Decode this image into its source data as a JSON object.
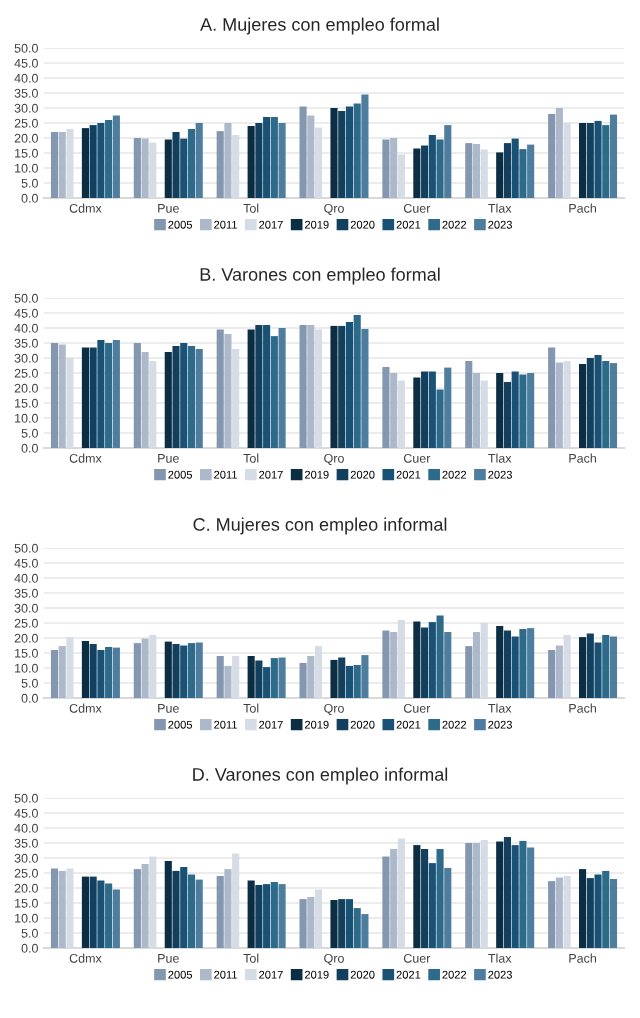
{
  "chart_data": [
    {
      "type": "bar",
      "title": "A. Mujeres con empleo formal",
      "categories": [
        "Cdmx",
        "Pue",
        "Tol",
        "Qro",
        "Cuer",
        "Tlax",
        "Pach"
      ],
      "ylim": [
        0,
        50
      ],
      "yticks": [
        {
          "value": 0,
          "label": "0.0"
        },
        {
          "value": 5,
          "label": "5.0"
        },
        {
          "value": 10,
          "label": "10.0"
        },
        {
          "value": 15,
          "label": "15.0"
        },
        {
          "value": 20,
          "label": "20.0"
        },
        {
          "value": 25,
          "label": "25.0"
        },
        {
          "value": 30,
          "label": "30.0"
        },
        {
          "value": 35,
          "label": "35.0"
        },
        {
          "value": 40,
          "label": "40.0"
        },
        {
          "value": 45,
          "label": "45.0"
        },
        {
          "value": 50,
          "label": "50.0"
        }
      ],
      "grid": "y",
      "legend": "bottom",
      "series": [
        {
          "name": "2005",
          "color": "#8497b0",
          "values": [
            22,
            20,
            22.3,
            30.5,
            19.5,
            18.3,
            28
          ]
        },
        {
          "name": "2011",
          "color": "#adb9ca",
          "values": [
            22,
            19.8,
            25,
            27.5,
            20,
            18,
            30
          ]
        },
        {
          "name": "2017",
          "color": "#d6dce5",
          "values": [
            23,
            18.5,
            21,
            23.5,
            14.5,
            16.2,
            25
          ]
        },
        {
          "name": "2019",
          "color": "#0b2e45",
          "values": [
            23.3,
            19.5,
            24,
            30,
            16.5,
            15.2,
            25
          ]
        },
        {
          "name": "2020",
          "color": "#12405e",
          "values": [
            24.3,
            22,
            25,
            29,
            17.5,
            18.3,
            25
          ]
        },
        {
          "name": "2021",
          "color": "#1a5276",
          "values": [
            25,
            19.8,
            27,
            30.5,
            21,
            19.8,
            25.7
          ]
        },
        {
          "name": "2022",
          "color": "#2e6b8a",
          "values": [
            26,
            23,
            27,
            31.5,
            19.5,
            16.3,
            24.3
          ]
        },
        {
          "name": "2023",
          "color": "#4e7d9e",
          "values": [
            27.5,
            25,
            25,
            34.5,
            24.3,
            17.8,
            27.8
          ]
        }
      ]
    },
    {
      "type": "bar",
      "title": "B. Varones con empleo formal",
      "categories": [
        "Cdmx",
        "Pue",
        "Tol",
        "Qro",
        "Cuer",
        "Tlax",
        "Pach"
      ],
      "ylim": [
        0,
        50
      ],
      "yticks": [
        {
          "value": 0,
          "label": "0.0"
        },
        {
          "value": 5,
          "label": "5.0"
        },
        {
          "value": 10,
          "label": "10.0"
        },
        {
          "value": 15,
          "label": "15.0"
        },
        {
          "value": 20,
          "label": "20.0"
        },
        {
          "value": 25,
          "label": "25.0"
        },
        {
          "value": 30,
          "label": "30.0"
        },
        {
          "value": 35,
          "label": "35.0"
        },
        {
          "value": 40,
          "label": "40.0"
        },
        {
          "value": 45,
          "label": "45.0"
        },
        {
          "value": 50,
          "label": "50.0"
        }
      ],
      "grid": "y",
      "legend": "bottom",
      "series": [
        {
          "name": "2005",
          "color": "#8497b0",
          "values": [
            35,
            35,
            39.5,
            41,
            27,
            29,
            33.5
          ]
        },
        {
          "name": "2011",
          "color": "#adb9ca",
          "values": [
            34.5,
            32,
            38,
            41,
            25,
            25,
            28.5
          ]
        },
        {
          "name": "2017",
          "color": "#d6dce5",
          "values": [
            30,
            29,
            33,
            39.5,
            22.5,
            22.5,
            29
          ]
        },
        {
          "name": "2019",
          "color": "#0b2e45",
          "values": [
            33.5,
            32,
            39.5,
            40.7,
            23.5,
            25,
            28
          ]
        },
        {
          "name": "2020",
          "color": "#12405e",
          "values": [
            33.5,
            34,
            41,
            40.7,
            25.5,
            22,
            30
          ]
        },
        {
          "name": "2021",
          "color": "#1a5276",
          "values": [
            36,
            35,
            41,
            42,
            25.5,
            25.5,
            31
          ]
        },
        {
          "name": "2022",
          "color": "#2e6b8a",
          "values": [
            35,
            34,
            37.3,
            44.3,
            19.5,
            24.5,
            29
          ]
        },
        {
          "name": "2023",
          "color": "#4e7d9e",
          "values": [
            36,
            33,
            40,
            39.7,
            26.8,
            25,
            28.3
          ]
        }
      ]
    },
    {
      "type": "bar",
      "title": "C. Mujeres con empleo informal",
      "categories": [
        "Cdmx",
        "Pue",
        "Tol",
        "Qro",
        "Cuer",
        "Tlax",
        "Pach"
      ],
      "ylim": [
        0,
        50
      ],
      "yticks": [
        {
          "value": 0,
          "label": "0.0"
        },
        {
          "value": 5,
          "label": "5.0"
        },
        {
          "value": 10,
          "label": "10.0"
        },
        {
          "value": 15,
          "label": "15.0"
        },
        {
          "value": 20,
          "label": "20.0"
        },
        {
          "value": 25,
          "label": "25.0"
        },
        {
          "value": 30,
          "label": "30.0"
        },
        {
          "value": 35,
          "label": "35.0"
        },
        {
          "value": 40,
          "label": "40.0"
        },
        {
          "value": 45,
          "label": "45.0"
        },
        {
          "value": 50,
          "label": "50.0"
        }
      ],
      "grid": "y",
      "legend": "bottom",
      "series": [
        {
          "name": "2005",
          "color": "#8497b0",
          "values": [
            16,
            18.3,
            14,
            11.7,
            22.5,
            17.3,
            16
          ]
        },
        {
          "name": "2011",
          "color": "#adb9ca",
          "values": [
            17.3,
            19.8,
            10.7,
            14,
            22,
            22,
            17.5
          ]
        },
        {
          "name": "2017",
          "color": "#d6dce5",
          "values": [
            20.3,
            21,
            14,
            17.3,
            26,
            25,
            21
          ]
        },
        {
          "name": "2019",
          "color": "#0b2e45",
          "values": [
            19,
            18.8,
            14,
            12.7,
            25.5,
            24,
            20.3
          ]
        },
        {
          "name": "2020",
          "color": "#12405e",
          "values": [
            18,
            18,
            12.5,
            13.5,
            23.5,
            22.5,
            21.5
          ]
        },
        {
          "name": "2021",
          "color": "#1a5276",
          "values": [
            16,
            17.5,
            10.3,
            10.7,
            25.3,
            20.5,
            18.5
          ]
        },
        {
          "name": "2022",
          "color": "#2e6b8a",
          "values": [
            17,
            18.3,
            13.3,
            11,
            27.5,
            23,
            21
          ]
        },
        {
          "name": "2023",
          "color": "#4e7d9e",
          "values": [
            16.8,
            18.5,
            13.5,
            14.3,
            22,
            23.3,
            20.5
          ]
        }
      ]
    },
    {
      "type": "bar",
      "title": "D. Varones con empleo informal",
      "categories": [
        "Cdmx",
        "Pue",
        "Tol",
        "Qro",
        "Cuer",
        "Tlax",
        "Pach"
      ],
      "ylim": [
        0,
        50
      ],
      "yticks": [
        {
          "value": 0,
          "label": "0.0"
        },
        {
          "value": 5,
          "label": "5.0"
        },
        {
          "value": 10,
          "label": "10.0"
        },
        {
          "value": 15,
          "label": "15.0"
        },
        {
          "value": 20,
          "label": "20.0"
        },
        {
          "value": 25,
          "label": "25.0"
        },
        {
          "value": 30,
          "label": "30.0"
        },
        {
          "value": 35,
          "label": "35.0"
        },
        {
          "value": 40,
          "label": "40.0"
        },
        {
          "value": 45,
          "label": "45.0"
        },
        {
          "value": 50,
          "label": "50.0"
        }
      ],
      "grid": "y",
      "legend": "bottom",
      "series": [
        {
          "name": "2005",
          "color": "#8497b0",
          "values": [
            26.5,
            26.3,
            24,
            16.3,
            30.5,
            35,
            22.3
          ]
        },
        {
          "name": "2011",
          "color": "#adb9ca",
          "values": [
            25.7,
            28,
            26.3,
            17,
            33,
            35,
            23.5
          ]
        },
        {
          "name": "2017",
          "color": "#d6dce5",
          "values": [
            26.5,
            30.5,
            31.5,
            19.5,
            36.5,
            36,
            24
          ]
        },
        {
          "name": "2019",
          "color": "#0b2e45",
          "values": [
            23.8,
            29,
            22.5,
            16,
            34.3,
            35.5,
            26.3
          ]
        },
        {
          "name": "2020",
          "color": "#12405e",
          "values": [
            23.8,
            25.7,
            21,
            16.3,
            33,
            37,
            23.3
          ]
        },
        {
          "name": "2021",
          "color": "#1a5276",
          "values": [
            22.5,
            27,
            21.3,
            16.3,
            28.3,
            34.3,
            24.5
          ]
        },
        {
          "name": "2022",
          "color": "#2e6b8a",
          "values": [
            21.5,
            24.5,
            22,
            13.3,
            33,
            35.7,
            25.7
          ]
        },
        {
          "name": "2023",
          "color": "#4e7d9e",
          "values": [
            19.5,
            22.8,
            21.3,
            11.3,
            26.7,
            33.5,
            23
          ]
        }
      ]
    }
  ]
}
